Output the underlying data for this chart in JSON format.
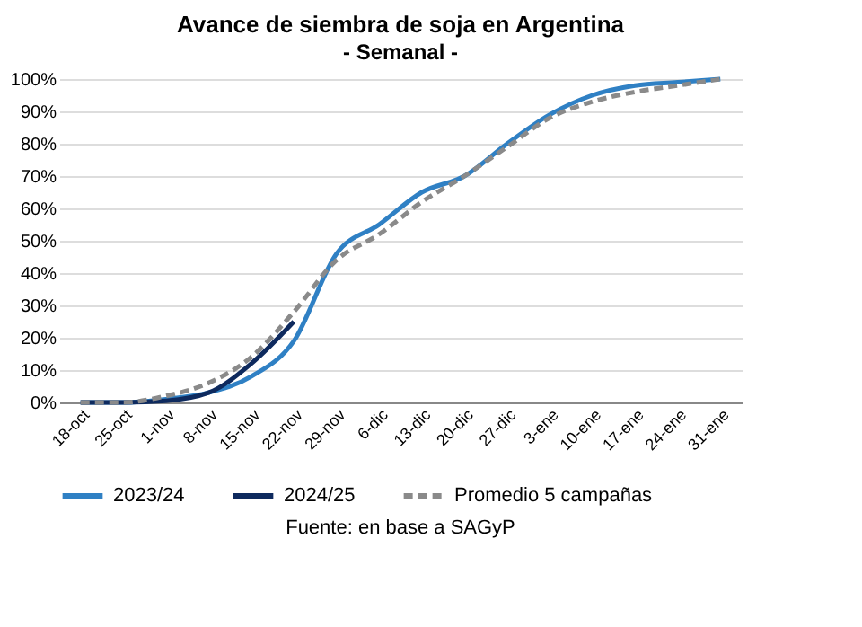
{
  "chart_data": {
    "type": "line",
    "title": "Avance de siembra de soja en Argentina",
    "subtitle": "- Semanal -",
    "categories": [
      "18-oct",
      "25-oct",
      "1-nov",
      "8-nov",
      "15-nov",
      "22-nov",
      "29-nov",
      "6-dic",
      "13-dic",
      "20-dic",
      "27-dic",
      "3-ene",
      "10-ene",
      "17-ene",
      "24-ene",
      "31-ene"
    ],
    "series": [
      {
        "name": "2023/24",
        "color": "#2f80c4",
        "line_style": "solid",
        "values": [
          0,
          0,
          1,
          3,
          8,
          19,
          46,
          55,
          65,
          70,
          80,
          89,
          95,
          98,
          99,
          100
        ]
      },
      {
        "name": "2024/25",
        "color": "#0e2a5e",
        "line_style": "solid",
        "values": [
          0,
          0,
          0.5,
          3,
          12,
          25,
          null,
          null,
          null,
          null,
          null,
          null,
          null,
          null,
          null,
          null
        ]
      },
      {
        "name": "Promedio 5 campañas",
        "color": "#8a8a8a",
        "line_style": "dashed",
        "values": [
          0,
          0,
          2,
          6,
          14,
          28,
          44,
          52,
          62,
          70,
          79,
          88,
          93,
          96,
          98,
          100
        ]
      }
    ],
    "ylim": [
      0,
      100
    ],
    "yticks": [
      {
        "value": 0,
        "label": "0%"
      },
      {
        "value": 10,
        "label": "10%"
      },
      {
        "value": 20,
        "label": "20%"
      },
      {
        "value": 30,
        "label": "30%"
      },
      {
        "value": 40,
        "label": "40%"
      },
      {
        "value": 50,
        "label": "50%"
      },
      {
        "value": 60,
        "label": "60%"
      },
      {
        "value": 70,
        "label": "70%"
      },
      {
        "value": 80,
        "label": "80%"
      },
      {
        "value": 90,
        "label": "90%"
      },
      {
        "value": 100,
        "label": "100%"
      }
    ],
    "grid": "y",
    "legend": "bottom",
    "marker": "none",
    "annotations": [
      "Fuente: en base a SAGyP"
    ]
  }
}
